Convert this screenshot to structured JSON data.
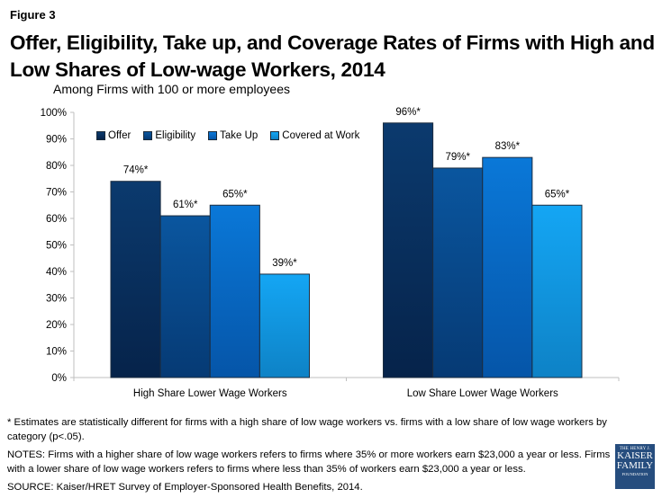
{
  "figure_label": "Figure 3",
  "title": "Offer, Eligibility, Take up, and Coverage Rates of Firms with High and Low Shares of Low-wage Workers, 2014",
  "subtitle": "Among Firms with 100 or more employees",
  "chart_data": {
    "type": "bar",
    "title": "Offer, Eligibility, Take up, and Coverage Rates of Firms with High and Low Shares of Low-wage Workers, 2014",
    "subtitle": "Among Firms with 100 or more employees",
    "categories": [
      "High Share Lower Wage Workers",
      "Low Share Lower Wage Workers"
    ],
    "series": [
      {
        "name": "Offer",
        "values": [
          74,
          96
        ],
        "labels": [
          "74%*",
          "96%*"
        ],
        "color": "#0b3a6e",
        "color_dark": "#06234a"
      },
      {
        "name": "Eligibility",
        "values": [
          61,
          79
        ],
        "labels": [
          "61%*",
          "79%*"
        ],
        "color": "#0a569f",
        "color_dark": "#063a74"
      },
      {
        "name": "Take Up",
        "values": [
          65,
          83
        ],
        "labels": [
          "65%*",
          "83%*"
        ],
        "color": "#0a78d8",
        "color_dark": "#0555a8"
      },
      {
        "name": "Covered at Work",
        "values": [
          39,
          65
        ],
        "labels": [
          "39%*",
          "65%*"
        ],
        "color": "#14a6f4",
        "color_dark": "#0e82c6"
      }
    ],
    "xlabel": "",
    "ylabel": "",
    "ylim": [
      0,
      100
    ],
    "yticks": [
      "0%",
      "10%",
      "20%",
      "30%",
      "40%",
      "50%",
      "60%",
      "70%",
      "80%",
      "90%",
      "100%"
    ],
    "grid": false,
    "legend": "top-left"
  },
  "notes": {
    "footnote": "* Estimates are statistically different for firms with a high share of low wage workers vs. firms with a low share of low wage workers by category (p<.05).",
    "notes": "NOTES: Firms with a higher share of low wage workers refers to firms where 35% or more workers earn $23,000 a year or less. Firms with a lower share of low wage workers refers to firms where less than 35% of workers earn $23,000 a year or less.",
    "source": "SOURCE: Kaiser/HRET Survey of Employer-Sponsored Health Benefits, 2014."
  },
  "logo": {
    "line1": "THE HENRY J.",
    "line2": "KAISER",
    "line3": "FAMILY",
    "line4": "FOUNDATION"
  }
}
